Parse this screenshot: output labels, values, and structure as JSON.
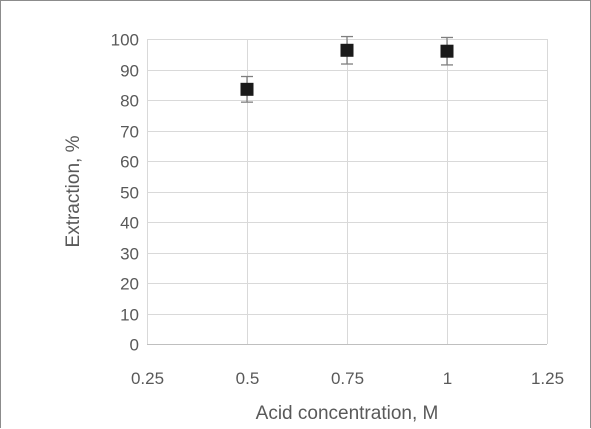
{
  "chart_data": {
    "type": "scatter",
    "title": "",
    "xlabel": "Acid concentration, M",
    "ylabel": "Extraction, %",
    "xlim": [
      0.25,
      1.25
    ],
    "ylim": [
      0,
      100
    ],
    "x_ticks": [
      0.25,
      0.5,
      0.75,
      1,
      1.25
    ],
    "x_tick_labels": [
      "0.25",
      "0.5",
      "0.75",
      "1",
      "1.25"
    ],
    "y_ticks": [
      0,
      10,
      20,
      30,
      40,
      50,
      60,
      70,
      80,
      90,
      100
    ],
    "y_tick_labels": [
      "0",
      "10",
      "20",
      "30",
      "40",
      "50",
      "60",
      "70",
      "80",
      "90",
      "100"
    ],
    "grid": "major gridlines on both axes",
    "legend": "none",
    "marker": "square",
    "series": [
      {
        "x": [
          0.5,
          0.75,
          1
        ],
        "y": [
          83.5,
          96.3,
          96.0
        ],
        "error_y": [
          4.2,
          4.5,
          4.5
        ],
        "color": "#1a1a1a"
      }
    ],
    "colors": {
      "marker": "#1a1a1a",
      "errorbar": "#7f7f7f",
      "grid": "#d9d9d9",
      "text": "#595959"
    }
  }
}
